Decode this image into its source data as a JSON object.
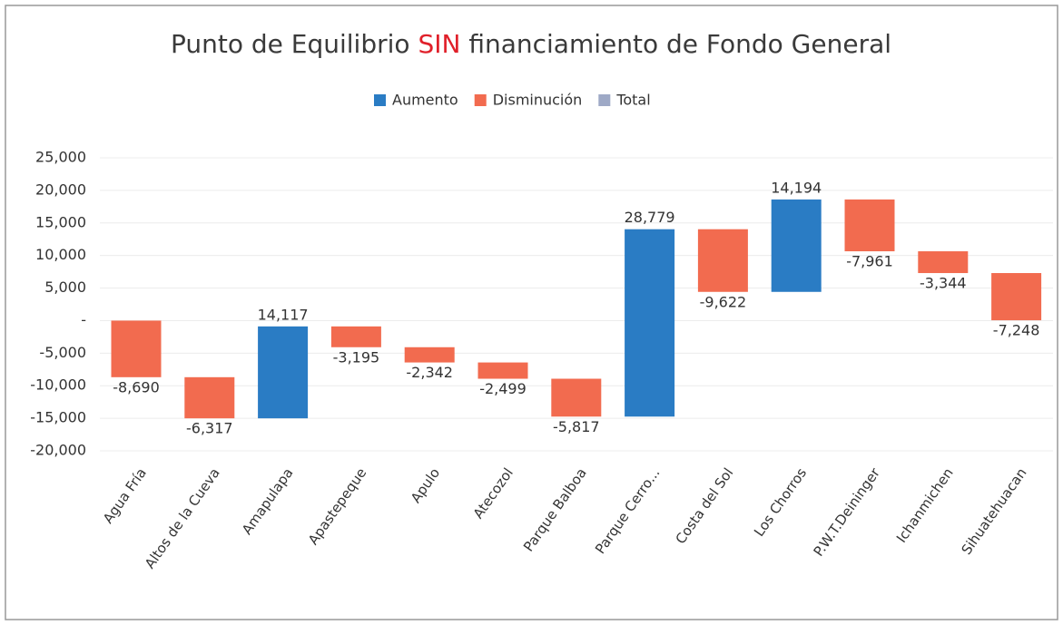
{
  "chart_data": {
    "type": "waterfall",
    "title_parts": [
      {
        "text": "Punto de Equilibrio ",
        "color": "#3a3a3a"
      },
      {
        "text": "SIN",
        "color": "#e0202a"
      },
      {
        "text": " financiamiento  de Fondo General",
        "color": "#3a3a3a"
      }
    ],
    "legend": [
      {
        "name": "Aumento",
        "color": "#2a7cc4"
      },
      {
        "name": "Disminución",
        "color": "#f26b4f"
      },
      {
        "name": "Total",
        "color": "#9ea9c6"
      }
    ],
    "categories": [
      "Agua Fría",
      "Altos de la Cueva",
      "Amapulapa",
      "Apastepeque",
      "Apulo",
      "Atecozol",
      "Parque Balboa",
      "Parque Cerro...",
      "Costa del Sol",
      "Los Chorros",
      "P.W.T.Deininger",
      "Ichanmichen",
      "Sihuatehuacan"
    ],
    "values": [
      -8690,
      -6317,
      14117,
      -3195,
      -2342,
      -2499,
      -5817,
      28779,
      -9622,
      14194,
      -7961,
      -3344,
      -7248
    ],
    "value_labels": [
      "-8,690",
      "-6,317",
      "14,117",
      "-3,195",
      "-2,342",
      "-2,499",
      "-5,817",
      "28,779",
      "-9,622",
      "14,194",
      "-7,961",
      "-3,344",
      "-7,248"
    ],
    "ylim": [
      -20000,
      25000
    ],
    "yticks": [
      {
        "value": -20000,
        "label": "-20,000"
      },
      {
        "value": -15000,
        "label": "-15,000"
      },
      {
        "value": -10000,
        "label": "-10,000"
      },
      {
        "value": -5000,
        "label": "-5,000"
      },
      {
        "value": 0,
        "label": "-"
      },
      {
        "value": 5000,
        "label": "5,000"
      },
      {
        "value": 10000,
        "label": "10,000"
      },
      {
        "value": 15000,
        "label": "15,000"
      },
      {
        "value": 20000,
        "label": "20,000"
      },
      {
        "value": 25000,
        "label": "25,000"
      }
    ],
    "grid": true
  }
}
